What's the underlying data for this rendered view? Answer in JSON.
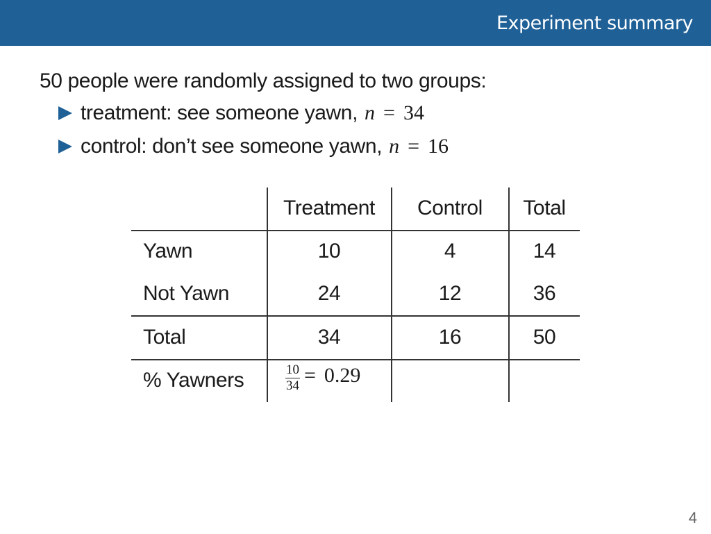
{
  "header": {
    "title": "Experiment summary",
    "bar_color": "#1f6097"
  },
  "intro": "50 people were randomly assigned to two groups:",
  "bullets": [
    {
      "text": "treatment: see someone yawn,",
      "var": "n",
      "eq": "=",
      "value": "34"
    },
    {
      "text": "control: don’t see someone yawn,",
      "var": "n",
      "eq": "=",
      "value": "16"
    }
  ],
  "table": {
    "headers": [
      "Treatment",
      "Control",
      "Total"
    ],
    "rows": [
      {
        "label": "Yawn",
        "cells": [
          "10",
          "4",
          "14"
        ]
      },
      {
        "label": "Not Yawn",
        "cells": [
          "24",
          "12",
          "36"
        ]
      },
      {
        "label": "Total",
        "cells": [
          "34",
          "16",
          "50"
        ]
      }
    ],
    "yawners_row": {
      "label": "% Yawners",
      "fraction": {
        "numerator": "10",
        "denominator": "34",
        "eq": "=",
        "result": "0.29"
      }
    }
  },
  "page_number": "4"
}
